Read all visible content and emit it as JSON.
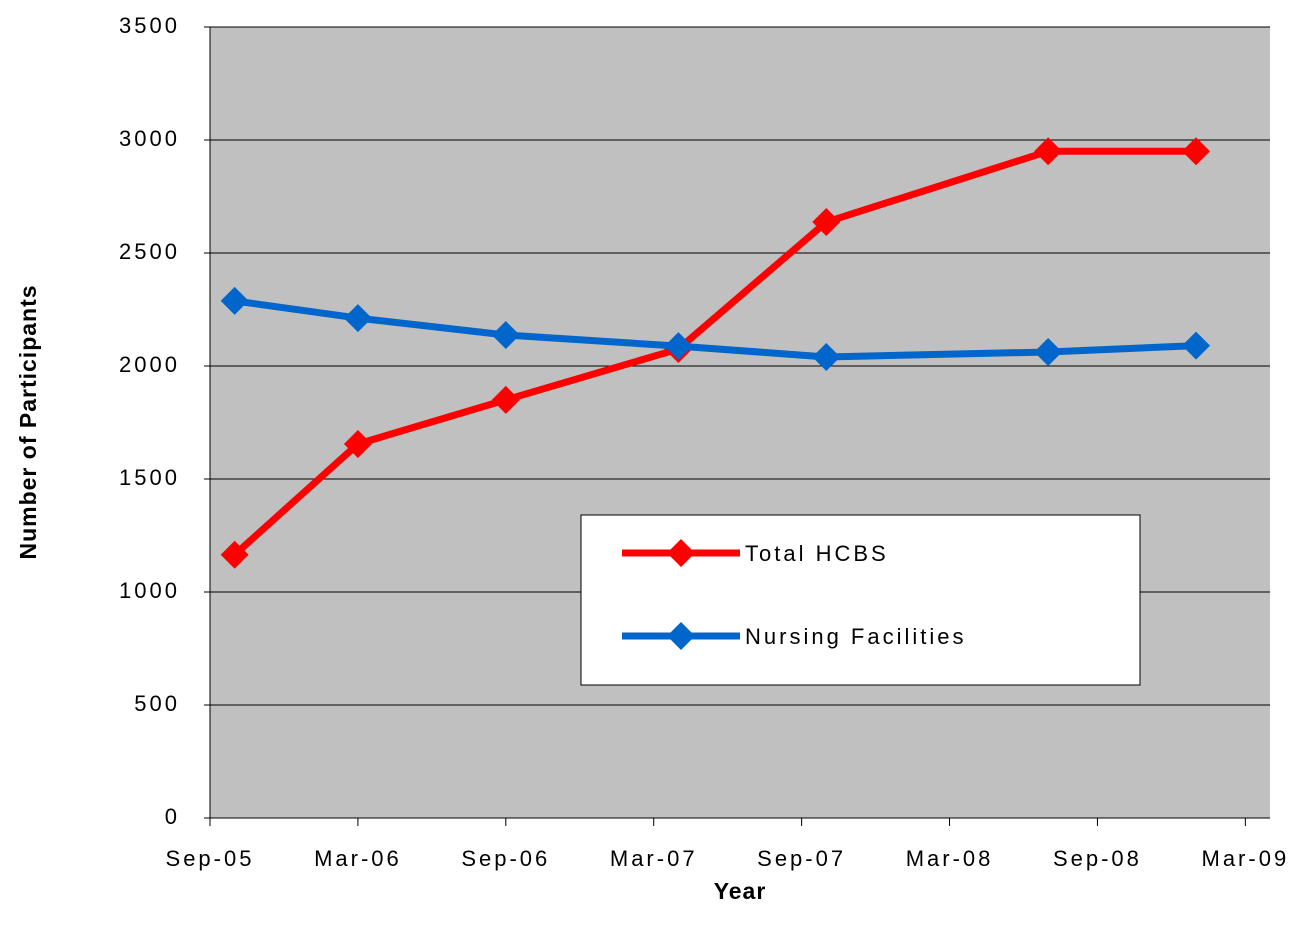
{
  "chart_data": {
    "type": "line",
    "x": [
      "2005-10",
      "2006-03",
      "2006-09",
      "2007-04",
      "2007-10",
      "2008-07",
      "2009-01"
    ],
    "series": [
      {
        "name": "Total HCBS",
        "color": "#ff0000",
        "values": [
          1165,
          1655,
          1850,
          2075,
          2637,
          2950,
          2950
        ]
      },
      {
        "name": "Nursing Facilities",
        "color": "#0066cc",
        "values": [
          2288,
          2212,
          2137,
          2088,
          2040,
          2062,
          2090
        ]
      }
    ],
    "xlim": [
      "2005-09",
      "2009-04"
    ],
    "xticks": [
      {
        "value": "2005-09",
        "label": "Sep-05"
      },
      {
        "value": "2006-03",
        "label": "Mar-06"
      },
      {
        "value": "2006-09",
        "label": "Sep-06"
      },
      {
        "value": "2007-03",
        "label": "Mar-07"
      },
      {
        "value": "2007-09",
        "label": "Sep-07"
      },
      {
        "value": "2008-03",
        "label": "Mar-08"
      },
      {
        "value": "2008-09",
        "label": "Sep-08"
      },
      {
        "value": "2009-03",
        "label": "Mar-09"
      }
    ],
    "ylim": [
      0,
      3500
    ],
    "yticks": [
      0,
      500,
      1000,
      1500,
      2000,
      2500,
      3000,
      3500
    ],
    "grid": true,
    "plot_background": "#c0c0c0",
    "xlabel": "Year",
    "ylabel": "Number of Participants"
  }
}
